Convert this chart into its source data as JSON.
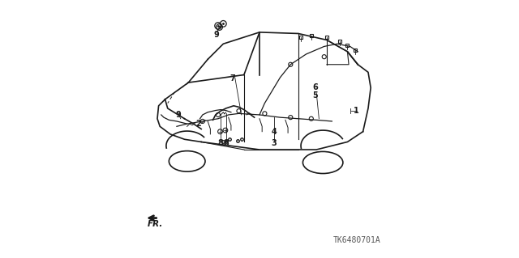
{
  "bg_color": "#ffffff",
  "line_color": "#1a1a1a",
  "diagram_id": "TK6480701A",
  "fr_label": "FR.",
  "figsize": [
    6.4,
    3.19
  ],
  "dpi": 100
}
